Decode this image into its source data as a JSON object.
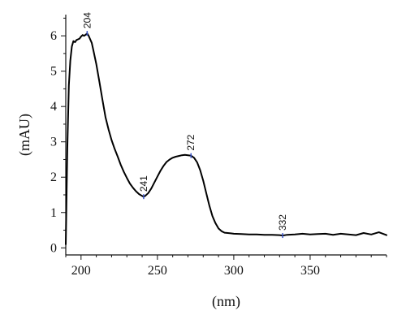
{
  "chart_data": {
    "type": "line",
    "title": "",
    "xlabel": "(nm)",
    "ylabel": "(mAU)",
    "xlim": [
      190,
      400
    ],
    "ylim": [
      -0.2,
      6.6
    ],
    "xticks": [
      200,
      250,
      300,
      350
    ],
    "yticks": [
      0,
      1,
      2,
      3,
      4,
      5,
      6
    ],
    "grid": false,
    "legend": "none",
    "line_color": "#000000",
    "marker_color": "#3a55c8",
    "series": [
      {
        "name": "",
        "x": [
          190,
          191,
          192,
          193,
          194,
          195,
          196,
          197,
          198,
          199,
          200,
          201,
          202,
          203,
          204,
          205,
          206,
          207,
          208,
          210,
          212,
          214,
          216,
          218,
          220,
          222,
          224,
          226,
          228,
          230,
          232,
          234,
          236,
          238,
          240,
          241,
          242,
          244,
          246,
          248,
          250,
          252,
          254,
          256,
          258,
          260,
          262,
          264,
          266,
          268,
          270,
          272,
          274,
          276,
          278,
          280,
          282,
          284,
          286,
          288,
          290,
          292,
          294,
          296,
          298,
          300,
          305,
          310,
          315,
          320,
          325,
          330,
          332,
          335,
          340,
          345,
          350,
          355,
          360,
          365,
          370,
          375,
          380,
          385,
          390,
          395,
          400
        ],
        "y": [
          0.1,
          2.8,
          4.6,
          5.3,
          5.7,
          5.85,
          5.82,
          5.88,
          5.9,
          5.92,
          5.98,
          6.02,
          6.0,
          6.03,
          6.07,
          6.0,
          5.9,
          5.8,
          5.6,
          5.2,
          4.7,
          4.2,
          3.7,
          3.35,
          3.05,
          2.8,
          2.58,
          2.35,
          2.15,
          1.98,
          1.82,
          1.7,
          1.6,
          1.52,
          1.47,
          1.45,
          1.47,
          1.55,
          1.68,
          1.85,
          2.02,
          2.18,
          2.32,
          2.43,
          2.5,
          2.55,
          2.58,
          2.6,
          2.62,
          2.63,
          2.62,
          2.61,
          2.55,
          2.42,
          2.2,
          1.9,
          1.55,
          1.2,
          0.9,
          0.7,
          0.55,
          0.47,
          0.43,
          0.42,
          0.41,
          0.4,
          0.39,
          0.38,
          0.38,
          0.37,
          0.37,
          0.36,
          0.35,
          0.37,
          0.38,
          0.4,
          0.38,
          0.39,
          0.4,
          0.37,
          0.4,
          0.38,
          0.36,
          0.42,
          0.38,
          0.44,
          0.36
        ]
      }
    ],
    "annotations": [
      {
        "label": "204",
        "x": 204,
        "y": 6.07
      },
      {
        "label": "241",
        "x": 241,
        "y": 1.45
      },
      {
        "label": "272",
        "x": 272,
        "y": 2.61
      },
      {
        "label": "332",
        "x": 332,
        "y": 0.35
      }
    ]
  }
}
